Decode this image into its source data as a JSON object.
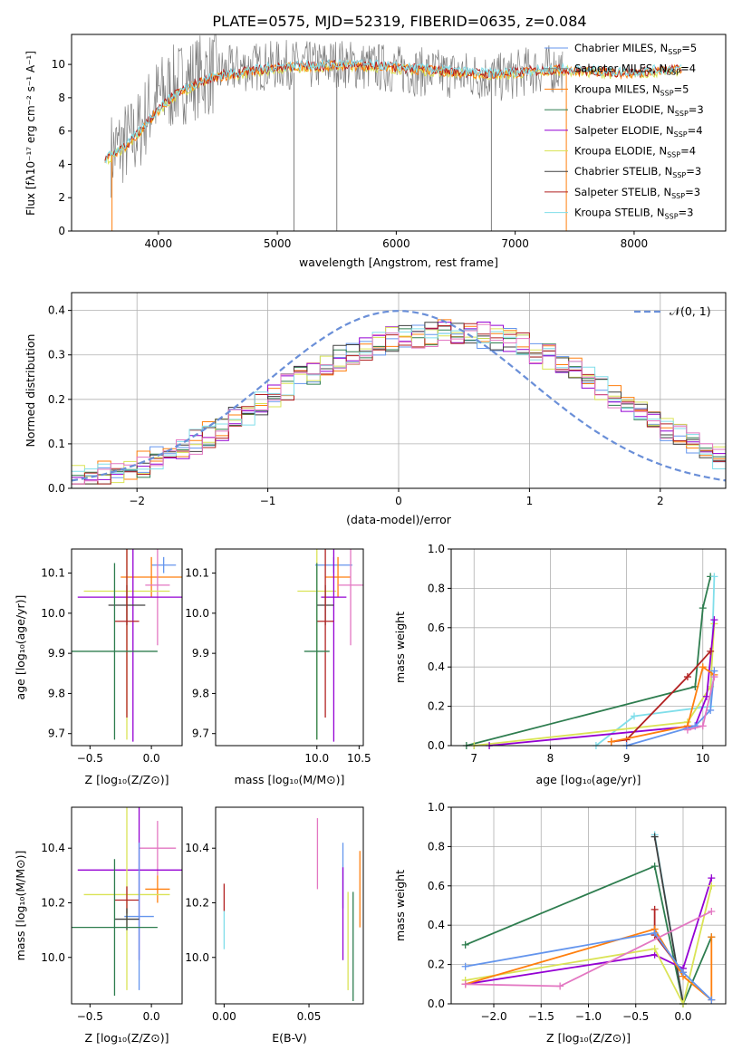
{
  "figure": {
    "title": "PLATE=0575, MJD=52319, FIBERID=0635, z=0.084"
  },
  "series_labels": {
    "chabrier_miles": "Chabrier MILES, N_SSP=5",
    "salpeter_miles": "Salpeter MILES, N_SSP=4",
    "kroupa_miles": "Kroupa MILES, N_SSP=5",
    "chabrier_elodie": "Chabrier ELODIE, N_SSP=3",
    "salpeter_elodie": "Salpeter ELODIE, N_SSP=4",
    "kroupa_elodie": "Kroupa ELODIE, N_SSP=4",
    "chabrier_stelib": "Chabrier STELIB, N_SSP=3",
    "salpeter_stelib": "Salpeter STELIB, N_SSP=3",
    "kroupa_stelib": "Kroupa STELIB, N_SSP=3"
  },
  "colors": {
    "chabrier_miles": "#6495ED",
    "salpeter_miles": "#7f7f7f",
    "kroupa_miles": "#FF7F0E",
    "chabrier_elodie": "#2E7D4F",
    "salpeter_elodie": "#9400D3",
    "kroupa_elodie": "#DAE356",
    "chabrier_stelib": "#404040",
    "salpeter_stelib": "#B22222",
    "kroupa_stelib": "#80DEEA",
    "pink": "#E377C2",
    "normal_curve": "#6A8FD8",
    "grid": "#b0b0b0"
  },
  "chart_data": [
    {
      "id": "spectrum",
      "type": "line",
      "xlabel": "wavelength [Angstrom, rest frame]",
      "ylabel": "Flux [f_λ 10^-17 erg cm^-2 s^-1 A^-1]",
      "xlim": [
        3270,
        8770
      ],
      "ylim": [
        0,
        11.8
      ],
      "xticks": [
        4000,
        5000,
        6000,
        7000,
        8000
      ],
      "yticks": [
        0,
        2,
        4,
        6,
        8,
        10
      ],
      "grid": false,
      "legend": "lower-right",
      "data_curve": {
        "x": [
          3600,
          3700,
          3800,
          3850,
          3900,
          3950,
          4000,
          4100,
          4200,
          4300,
          4400,
          4500,
          4700,
          4900,
          5100,
          5300,
          5500,
          5700,
          5900,
          6100,
          6300,
          6500,
          6700,
          6900,
          7100,
          7300,
          7400
        ],
        "y": [
          4.6,
          5.2,
          5.6,
          6.2,
          7.0,
          7.6,
          8.0,
          8.5,
          8.9,
          9.2,
          9.4,
          9.5,
          9.8,
          9.9,
          10.0,
          9.9,
          10.1,
          9.9,
          9.8,
          9.6,
          9.5,
          9.4,
          9.3,
          9.2,
          9.6,
          9.7,
          9.8
        ]
      },
      "model_curve": {
        "x": [
          3550,
          3650,
          3750,
          3850,
          3950,
          4050,
          4150,
          4250,
          4350,
          4450,
          4600,
          4800,
          5000,
          5200,
          5400,
          5600,
          5800,
          6000,
          6200,
          6400,
          6600,
          6800,
          7000,
          7200,
          7400,
          7600,
          7800,
          8000,
          8200,
          8400
        ],
        "y": [
          4.2,
          4.8,
          5.2,
          6.0,
          6.9,
          7.6,
          8.2,
          8.6,
          8.9,
          9.2,
          9.4,
          9.6,
          9.8,
          9.9,
          9.9,
          10.0,
          9.9,
          9.8,
          9.7,
          9.6,
          9.5,
          9.4,
          9.5,
          9.6,
          9.7,
          9.6,
          9.5,
          9.5,
          9.6,
          9.7
        ]
      },
      "spikes": [
        {
          "x": 5140,
          "y": 0.0
        },
        {
          "x": 5500,
          "y": 0.0
        },
        {
          "x": 6800,
          "y": 0.0
        },
        {
          "x": 7430,
          "y": 0.0
        }
      ]
    },
    {
      "id": "residual_hist",
      "type": "histogram",
      "xlabel": "(data-model)/error",
      "ylabel": "Normed distribution",
      "xlim": [
        -2.5,
        2.5
      ],
      "ylim": [
        0,
        0.44
      ],
      "xticks": [
        -2,
        -1,
        0,
        1,
        2
      ],
      "yticks": [
        0.0,
        0.1,
        0.2,
        0.3,
        0.4
      ],
      "grid": true,
      "legend_label": "N(0,1)",
      "legend": "upper-right",
      "bin_edges_start": -2.5,
      "bin_width": 0.1,
      "reference_profile": [
        0.025,
        0.027,
        0.032,
        0.038,
        0.045,
        0.054,
        0.065,
        0.077,
        0.09,
        0.105,
        0.12,
        0.137,
        0.154,
        0.172,
        0.19,
        0.21,
        0.228,
        0.246,
        0.263,
        0.279,
        0.292,
        0.305,
        0.316,
        0.325,
        0.334,
        0.34,
        0.345,
        0.348,
        0.35,
        0.35,
        0.348,
        0.344,
        0.338,
        0.33,
        0.32,
        0.308,
        0.295,
        0.28,
        0.264,
        0.246,
        0.228,
        0.209,
        0.19,
        0.171,
        0.152,
        0.134,
        0.116,
        0.1,
        0.085,
        0.07
      ],
      "normal": {
        "mu": 0,
        "sigma": 1,
        "peak": 0.3989
      }
    },
    {
      "id": "age_vs_Z",
      "type": "errorbar",
      "xlabel": "Z [log10(Z/Z⊙)]",
      "ylabel": "age [log10(age/yr)]",
      "xlim": [
        -0.65,
        0.25
      ],
      "ylim": [
        9.67,
        10.16
      ],
      "xticks": [
        -0.5,
        0.0
      ],
      "yticks": [
        9.7,
        9.8,
        9.9,
        10.0,
        10.1
      ],
      "points": [
        {
          "c": "chabrier_miles",
          "x": 0.1,
          "xerr": 0.1,
          "y": 10.12,
          "yerr": 0.02
        },
        {
          "c": "kroupa_miles",
          "x": 0.0,
          "xerr": 0.25,
          "y": 10.09,
          "yerr": 0.05
        },
        {
          "c": "pink",
          "x": 0.05,
          "xerr": 0.1,
          "y": 10.07,
          "yerr": 0.15
        },
        {
          "c": "kroupa_elodie",
          "x": -0.2,
          "xerr": 0.35,
          "y": 10.055,
          "yerr": 0.37
        },
        {
          "c": "salpeter_elodie",
          "x": -0.15,
          "xerr": 0.45,
          "y": 10.04,
          "yerr": 0.36
        },
        {
          "c": "chabrier_stelib",
          "x": -0.2,
          "xerr": 0.15,
          "y": 10.02,
          "yerr": 0.05
        },
        {
          "c": "salpeter_stelib",
          "x": -0.2,
          "xerr": 0.1,
          "y": 9.98,
          "yerr": 0.24
        },
        {
          "c": "chabrier_elodie",
          "x": -0.3,
          "xerr": 0.35,
          "y": 9.905,
          "yerr": 0.22
        }
      ]
    },
    {
      "id": "age_vs_mass",
      "type": "errorbar",
      "xlabel": "mass [log10(M/M⊙)]",
      "ylabel": "",
      "xlim": [
        8.8,
        10.55
      ],
      "ylim": [
        9.67,
        10.16
      ],
      "xticks": [
        10.0,
        10.5
      ],
      "yticks": [
        9.7,
        9.8,
        9.9,
        10.0,
        10.1
      ],
      "points": [
        {
          "c": "chabrier_miles",
          "x": 10.2,
          "xerr": 0.22,
          "y": 10.12,
          "yerr": 0.02
        },
        {
          "c": "kroupa_miles",
          "x": 10.25,
          "xerr": 0.15,
          "y": 10.09,
          "yerr": 0.05
        },
        {
          "c": "pink",
          "x": 10.4,
          "xerr": 0.15,
          "y": 10.07,
          "yerr": 0.15
        },
        {
          "c": "kroupa_elodie",
          "x": 10.0,
          "xerr": 0.23,
          "y": 10.055,
          "yerr": 0.37
        },
        {
          "c": "salpeter_elodie",
          "x": 10.2,
          "xerr": 0.15,
          "y": 10.04,
          "yerr": 0.36
        },
        {
          "c": "chabrier_stelib",
          "x": 10.1,
          "xerr": 0.1,
          "y": 10.02,
          "yerr": 0.05
        },
        {
          "c": "salpeter_stelib",
          "x": 10.1,
          "xerr": 0.1,
          "y": 9.98,
          "yerr": 0.24
        },
        {
          "c": "chabrier_elodie",
          "x": 10.0,
          "xerr": 0.15,
          "y": 9.905,
          "yerr": 0.22
        }
      ]
    },
    {
      "id": "massweight_vs_age",
      "type": "line",
      "xlabel": "age [log10(age/yr)]",
      "ylabel": "mass weight",
      "xlim": [
        6.7,
        10.3
      ],
      "ylim": [
        0,
        1.0
      ],
      "xticks": [
        7,
        8,
        9,
        10
      ],
      "yticks": [
        0.0,
        0.2,
        0.4,
        0.6,
        0.8,
        1.0
      ],
      "grid": true,
      "series": [
        {
          "c": "chabrier_elodie",
          "x": [
            6.9,
            9.9,
            10.0,
            10.1
          ],
          "y": [
            0.0,
            0.3,
            0.7,
            0.86
          ]
        },
        {
          "c": "kroupa_stelib",
          "x": [
            8.6,
            9.1,
            10.1,
            10.15
          ],
          "y": [
            0.0,
            0.15,
            0.2,
            0.86
          ]
        },
        {
          "c": "kroupa_elodie",
          "x": [
            7.0,
            9.8,
            10.1,
            10.15
          ],
          "y": [
            0.0,
            0.12,
            0.3,
            0.62
          ]
        },
        {
          "c": "salpeter_elodie",
          "x": [
            7.2,
            9.9,
            10.05,
            10.15
          ],
          "y": [
            0.0,
            0.1,
            0.25,
            0.64
          ]
        },
        {
          "c": "salpeter_stelib",
          "x": [
            8.8,
            9.0,
            9.8,
            10.1
          ],
          "y": [
            0.02,
            0.03,
            0.35,
            0.48
          ]
        },
        {
          "c": "kroupa_miles",
          "x": [
            8.8,
            9.8,
            10.0,
            10.15
          ],
          "y": [
            0.02,
            0.1,
            0.4,
            0.36
          ]
        },
        {
          "c": "chabrier_miles",
          "x": [
            9.0,
            9.9,
            10.1,
            10.15
          ],
          "y": [
            0.0,
            0.1,
            0.18,
            0.38
          ]
        },
        {
          "c": "pink",
          "x": [
            9.8,
            10.0,
            10.15
          ],
          "y": [
            0.08,
            0.1,
            0.35
          ]
        }
      ]
    },
    {
      "id": "mass_vs_Z",
      "type": "errorbar",
      "xlabel": "Z [log10(Z/Z⊙)]",
      "ylabel": "mass [log10(M/M⊙)]",
      "xlim": [
        -0.65,
        0.25
      ],
      "ylim": [
        9.83,
        10.55
      ],
      "xticks": [
        -0.5,
        0.0
      ],
      "yticks": [
        10.0,
        10.2,
        10.4
      ],
      "points": [
        {
          "c": "pink",
          "x": 0.05,
          "xerr": 0.15,
          "y": 10.4,
          "yerr": 0.1
        },
        {
          "c": "salpeter_elodie",
          "x": -0.1,
          "xerr": 0.5,
          "y": 10.32,
          "yerr": 0.33
        },
        {
          "c": "kroupa_miles",
          "x": 0.05,
          "xerr": 0.1,
          "y": 10.25,
          "yerr": 0.05
        },
        {
          "c": "kroupa_elodie",
          "x": -0.2,
          "xerr": 0.35,
          "y": 10.23,
          "yerr": 0.35
        },
        {
          "c": "salpeter_stelib",
          "x": -0.2,
          "xerr": 0.1,
          "y": 10.21,
          "yerr": 0.05
        },
        {
          "c": "chabrier_miles",
          "x": -0.1,
          "xerr": 0.12,
          "y": 10.15,
          "yerr": 0.27
        },
        {
          "c": "chabrier_stelib",
          "x": -0.2,
          "xerr": 0.1,
          "y": 10.14,
          "yerr": 0.04
        },
        {
          "c": "chabrier_elodie",
          "x": -0.3,
          "xerr": 0.35,
          "y": 10.11,
          "yerr": 0.25
        }
      ]
    },
    {
      "id": "mass_vs_ebv",
      "type": "errorbar",
      "xlabel": "E(B-V)",
      "ylabel": "",
      "xlim": [
        -0.005,
        0.082
      ],
      "ylim": [
        9.83,
        10.55
      ],
      "xticks": [
        0.0,
        0.05
      ],
      "yticks": [
        10.0,
        10.2,
        10.4
      ],
      "points": [
        {
          "c": "salpeter_stelib",
          "x": 0.0,
          "xerr": 0,
          "y": 10.22,
          "yerr": 0.05
        },
        {
          "c": "kroupa_stelib",
          "x": 0.0,
          "xerr": 0,
          "y": 10.1,
          "yerr": 0.07
        },
        {
          "c": "pink",
          "x": 0.055,
          "xerr": 0,
          "y": 10.38,
          "yerr": 0.13
        },
        {
          "c": "chabrier_miles",
          "x": 0.07,
          "xerr": 0,
          "y": 10.3,
          "yerr": 0.12
        },
        {
          "c": "salpeter_elodie",
          "x": 0.07,
          "xerr": 0,
          "y": 10.16,
          "yerr": 0.17
        },
        {
          "c": "kroupa_elodie",
          "x": 0.073,
          "xerr": 0,
          "y": 10.06,
          "yerr": 0.18
        },
        {
          "c": "chabrier_elodie",
          "x": 0.076,
          "xerr": 0,
          "y": 10.04,
          "yerr": 0.2
        },
        {
          "c": "kroupa_miles",
          "x": 0.08,
          "xerr": 0,
          "y": 10.25,
          "yerr": 0.14
        }
      ]
    },
    {
      "id": "massweight_vs_Z",
      "type": "line",
      "xlabel": "Z [log10(Z/Z⊙)]",
      "ylabel": "mass weight",
      "xlim": [
        -2.45,
        0.45
      ],
      "ylim": [
        0,
        1.0
      ],
      "xticks": [
        -2.0,
        -1.5,
        -1.0,
        -0.5,
        0.0
      ],
      "yticks": [
        0.0,
        0.2,
        0.4,
        0.6,
        0.8,
        1.0
      ],
      "grid": true,
      "series": [
        {
          "c": "chabrier_elodie",
          "x": [
            -2.3,
            -0.3,
            0.0,
            0.3
          ],
          "y": [
            0.3,
            0.7,
            0.0,
            0.34
          ]
        },
        {
          "c": "kroupa_stelib",
          "x": [
            -0.3,
            0.0
          ],
          "y": [
            0.86,
            0.0
          ]
        },
        {
          "c": "chabrier_stelib",
          "x": [
            -0.3,
            0.0
          ],
          "y": [
            0.85,
            0.0
          ]
        },
        {
          "c": "salpeter_elodie",
          "x": [
            -2.3,
            -0.3,
            0.0,
            0.3
          ],
          "y": [
            0.1,
            0.25,
            0.18,
            0.64
          ]
        },
        {
          "c": "kroupa_elodie",
          "x": [
            -2.3,
            -0.3,
            0.0,
            0.3
          ],
          "y": [
            0.12,
            0.28,
            0.0,
            0.6
          ]
        },
        {
          "c": "salpeter_stelib",
          "x": [
            -0.3,
            -0.3,
            0.0
          ],
          "y": [
            0.48,
            0.35,
            0.16
          ]
        },
        {
          "c": "kroupa_miles",
          "x": [
            -2.3,
            -0.3,
            0.0,
            0.3,
            0.3
          ],
          "y": [
            0.1,
            0.38,
            0.14,
            0.02,
            0.34
          ]
        },
        {
          "c": "chabrier_miles",
          "x": [
            -2.3,
            -0.3,
            0.0,
            0.3
          ],
          "y": [
            0.19,
            0.36,
            0.16,
            0.02
          ]
        },
        {
          "c": "pink",
          "x": [
            -2.3,
            -1.3,
            0.3
          ],
          "y": [
            0.1,
            0.09,
            0.47
          ]
        }
      ]
    }
  ]
}
